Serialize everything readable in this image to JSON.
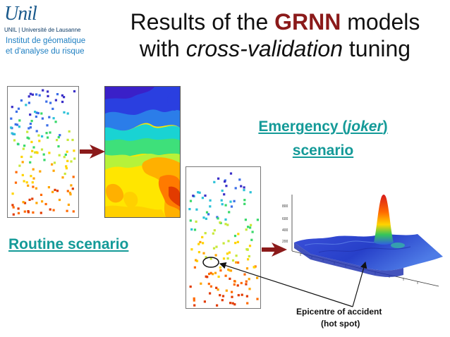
{
  "logo": {
    "wordmark": "Unil",
    "subtitle": "UNIL | Université de Lausanne",
    "institute_line1": "Institut de géomatique",
    "institute_line2": "et d'analyse du risque"
  },
  "title": {
    "line1_pre": "Results of the ",
    "line1_highlight": "GRNN",
    "line1_post": " models",
    "line2_pre": "with ",
    "line2_italic": "cross-validation",
    "line2_post": " tuning"
  },
  "labels": {
    "routine": "Routine scenario",
    "emergency_pre": "Emergency (",
    "emergency_italic": "joker",
    "emergency_post": ")",
    "emergency_line2": "scenario",
    "epicentre_line1": "Epicentre of accident",
    "epicentre_line2": "(hot spot)"
  },
  "colors": {
    "accent_title": "#8b1a1a",
    "heading": "#149a98",
    "arrow": "#8b1a1a",
    "logo": "#1a5a8c",
    "institute": "#1e7fc2"
  },
  "icons": {
    "arrow_right": "arrow-right-icon"
  },
  "surface_axis_ticks": [
    "800",
    "600",
    "400",
    "200"
  ]
}
